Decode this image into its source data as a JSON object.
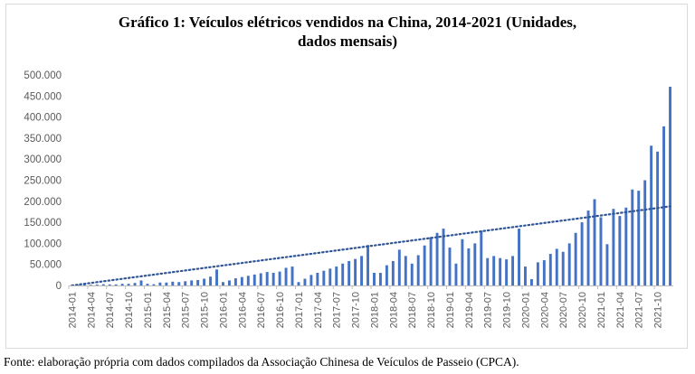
{
  "chart_data": {
    "type": "bar",
    "title_line1": "Gráfico 1: Veículos elétricos vendidos na China, 2014-2021 (Unidades,",
    "title_line2": "dados mensais)",
    "xlabel": "",
    "ylabel": "",
    "ylim": [
      0,
      500000
    ],
    "y_ticks": [
      0,
      50000,
      100000,
      150000,
      200000,
      250000,
      300000,
      350000,
      400000,
      450000,
      500000
    ],
    "y_tick_labels": [
      "0",
      "50.000",
      "100.000",
      "150.000",
      "200.000",
      "250.000",
      "300.000",
      "350.000",
      "400.000",
      "450.000",
      "500.000"
    ],
    "x_tick_labels": [
      "2014-01",
      "2014-04",
      "2014-07",
      "2014-10",
      "2015-01",
      "2015-04",
      "2015-07",
      "2015-10",
      "2016-01",
      "2016-04",
      "2016-07",
      "2016-10",
      "2017-01",
      "2017-04",
      "2017-07",
      "2017-10",
      "2018-01",
      "2018-04",
      "2018-07",
      "2018-10",
      "2019-01",
      "2019-04",
      "2019-07",
      "2019-10",
      "2020-01",
      "2020-04",
      "2020-07",
      "2020-10",
      "2021-01",
      "2021-04",
      "2021-07",
      "2021-10"
    ],
    "x_tick_every": 3,
    "categories": [
      "2014-01",
      "2014-02",
      "2014-03",
      "2014-04",
      "2014-05",
      "2014-06",
      "2014-07",
      "2014-08",
      "2014-09",
      "2014-10",
      "2014-11",
      "2014-12",
      "2015-01",
      "2015-02",
      "2015-03",
      "2015-04",
      "2015-05",
      "2015-06",
      "2015-07",
      "2015-08",
      "2015-09",
      "2015-10",
      "2015-11",
      "2015-12",
      "2016-01",
      "2016-02",
      "2016-03",
      "2016-04",
      "2016-05",
      "2016-06",
      "2016-07",
      "2016-08",
      "2016-09",
      "2016-10",
      "2016-11",
      "2016-12",
      "2017-01",
      "2017-02",
      "2017-03",
      "2017-04",
      "2017-05",
      "2017-06",
      "2017-07",
      "2017-08",
      "2017-09",
      "2017-10",
      "2017-11",
      "2017-12",
      "2018-01",
      "2018-02",
      "2018-03",
      "2018-04",
      "2018-05",
      "2018-06",
      "2018-07",
      "2018-08",
      "2018-09",
      "2018-10",
      "2018-11",
      "2018-12",
      "2019-01",
      "2019-02",
      "2019-03",
      "2019-04",
      "2019-05",
      "2019-06",
      "2019-07",
      "2019-08",
      "2019-09",
      "2019-10",
      "2019-11",
      "2019-12",
      "2020-01",
      "2020-02",
      "2020-03",
      "2020-04",
      "2020-05",
      "2020-06",
      "2020-07",
      "2020-08",
      "2020-09",
      "2020-10",
      "2020-11",
      "2020-12",
      "2021-01",
      "2021-02",
      "2021-03",
      "2021-04",
      "2021-05",
      "2021-06",
      "2021-07",
      "2021-08",
      "2021-09",
      "2021-10",
      "2021-11",
      "2021-12"
    ],
    "values": [
      1000,
      1000,
      2000,
      1500,
      2000,
      3000,
      2500,
      2500,
      4000,
      4000,
      6000,
      12000,
      4000,
      3000,
      7000,
      7000,
      9000,
      8000,
      10000,
      12000,
      13000,
      16000,
      21000,
      38000,
      8000,
      12000,
      17000,
      20000,
      23000,
      26000,
      29000,
      32000,
      30000,
      33000,
      42000,
      45000,
      8000,
      16000,
      25000,
      30000,
      35000,
      40000,
      45000,
      52000,
      58000,
      63000,
      70000,
      96000,
      30000,
      30000,
      48000,
      58000,
      85000,
      70000,
      52000,
      72000,
      95000,
      115000,
      125000,
      135000,
      90000,
      52000,
      110000,
      88000,
      100000,
      130000,
      65000,
      70000,
      65000,
      62000,
      70000,
      135000,
      45000,
      15000,
      55000,
      60000,
      75000,
      87000,
      80000,
      100000,
      125000,
      150000,
      178000,
      205000,
      162000,
      98000,
      182000,
      165000,
      185000,
      228000,
      225000,
      250000,
      332000,
      318000,
      378000,
      472000
    ],
    "trend": {
      "start": 0,
      "end": 188000
    },
    "bar_color": "#4472c4",
    "trend_color": "#2f5597"
  },
  "source_note": "Fonte: elaboração própria com dados compilados da Associação Chinesa de Veículos de Passeio (CPCA)."
}
